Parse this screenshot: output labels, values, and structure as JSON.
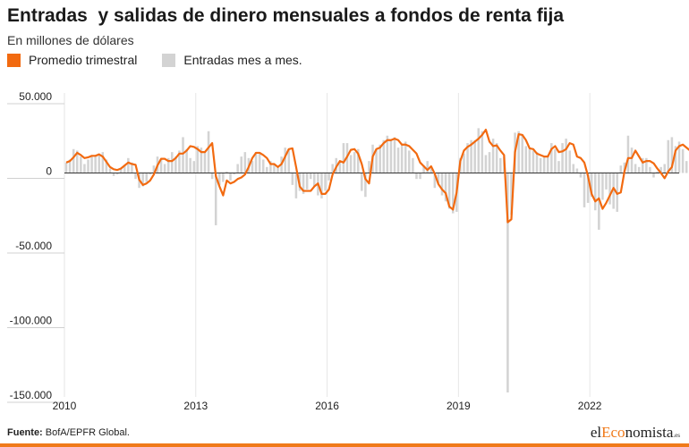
{
  "header": {
    "title": "Entradas  y salidas de dinero mensuales a fondos de renta fija",
    "subtitle": "En millones de dólares"
  },
  "legend": [
    {
      "label": "Promedio trimestral",
      "color": "#f26a10"
    },
    {
      "label": "Entradas mes a mes.",
      "color": "#d3d3d3"
    }
  ],
  "footer": {
    "source_label": "Fuente:",
    "source_text": " BofA/EPFR Global.",
    "brand_pre": "el",
    "brand_accent": "Eco",
    "brand_post": "nomista",
    "brand_suffix": ".es"
  },
  "colors": {
    "line": "#f26a10",
    "bars": "#d3d3d3",
    "brand_accent": "#f07a1a",
    "bottom_bar": "#f07a1a"
  },
  "chart_data": {
    "type": "bar+line",
    "x_start": "2010-01",
    "x_end": "2024-01",
    "frequency": "monthly",
    "ylim": [
      -150000,
      50000
    ],
    "yticks": [
      50000,
      0,
      -50000,
      -100000,
      -150000
    ],
    "ytick_labels": [
      "50.000",
      "0",
      "-50.000",
      "-100.000",
      "-150.000"
    ],
    "xtick_labels": [
      "2010",
      "2013",
      "2016",
      "2019",
      "2022"
    ],
    "grid": "vertical",
    "legend_position": "top-left",
    "series": [
      {
        "name": "Entradas mes a mes.",
        "type": "bar",
        "values": [
          7000,
          9000,
          16000,
          15000,
          11000,
          6000,
          9000,
          12000,
          12000,
          13000,
          14000,
          9000,
          3000,
          -2000,
          -1000,
          3000,
          5000,
          10000,
          7000,
          -4000,
          -10000,
          -9000,
          -6000,
          -1000,
          5000,
          11000,
          9000,
          6000,
          10000,
          14000,
          11000,
          15000,
          24000,
          16000,
          10000,
          8000,
          18000,
          17000,
          14000,
          28000,
          -4000,
          -35000,
          -8000,
          -6000,
          1000,
          -5000,
          -1000,
          6000,
          11000,
          14000,
          10000,
          8000,
          14000,
          13000,
          9000,
          4000,
          8000,
          6000,
          5000,
          11000,
          17000,
          16000,
          -8000,
          -17000,
          -12000,
          -14000,
          -11000,
          -4000,
          -9000,
          -15000,
          -17000,
          -12000,
          -5000,
          6000,
          10000,
          7000,
          20000,
          20000,
          12000,
          14000,
          16000,
          -12000,
          -16000,
          8000,
          19000,
          16000,
          19000,
          22000,
          25000,
          22000,
          24000,
          17000,
          19000,
          21000,
          15000,
          10000,
          -4000,
          -4000,
          5000,
          8000,
          3000,
          -10000,
          -7000,
          -15000,
          -19000,
          -24000,
          -27000,
          -26000,
          10000,
          13000,
          20000,
          22000,
          22000,
          30000,
          28000,
          12000,
          14000,
          23000,
          20000,
          10000,
          11000,
          -147000,
          -28000,
          27000,
          28000,
          26000,
          18000,
          16000,
          15000,
          14000,
          10000,
          11000,
          12000,
          20000,
          16000,
          8000,
          20000,
          23000,
          15000,
          6000,
          3000,
          -3000,
          -23000,
          -20000,
          -16000,
          -25000,
          -38000,
          -18000,
          -11000,
          -21000,
          -24000,
          -26000,
          5000,
          7000,
          25000,
          17000,
          6000,
          4000,
          10000,
          10000,
          4000,
          -3000,
          1000,
          4000,
          6000,
          22000,
          24000,
          18000,
          21000,
          16000,
          8000,
          10000,
          21000,
          24000
        ]
      },
      {
        "name": "Promedio trimestral",
        "type": "line",
        "values": [
          7000,
          8000,
          10500,
          13500,
          12000,
          10000,
          10500,
          11500,
          11500,
          12500,
          11000,
          7500,
          4000,
          2500,
          2000,
          3000,
          5000,
          7000,
          6000,
          5500,
          -4500,
          -8000,
          -7000,
          -5000,
          -1000,
          5000,
          9500,
          9500,
          8000,
          8000,
          10000,
          13000,
          13000,
          15000,
          18000,
          17500,
          16000,
          14000,
          14000,
          17000,
          20000,
          -2000,
          -9000,
          -15000,
          -5000,
          -7000,
          -6000,
          -4000,
          -3000,
          -1000,
          4000,
          10000,
          13500,
          13500,
          12000,
          10000,
          6000,
          6000,
          4000,
          6000,
          11000,
          16000,
          16500,
          4000,
          -9000,
          -12000,
          -12000,
          -12000,
          -9000,
          -7000,
          -14000,
          -14000,
          -11000,
          -1000,
          4000,
          8000,
          7000,
          11000,
          15500,
          16000,
          13000,
          6000,
          -4000,
          -7000,
          11000,
          16000,
          17000,
          20000,
          22000,
          22000,
          23000,
          22000,
          19000,
          19000,
          18000,
          15500,
          13000,
          7000,
          4500,
          2000,
          4500,
          -500,
          -7500,
          -11000,
          -13500,
          -22500,
          -24500,
          -13000,
          8000,
          15000,
          17500,
          19000,
          21000,
          23000,
          25500,
          29000,
          21000,
          18000,
          18500,
          15000,
          12000,
          -33000,
          -31000,
          14000,
          26000,
          25500,
          22000,
          16500,
          16000,
          13000,
          12000,
          11000,
          11000,
          16000,
          18000,
          14000,
          14500,
          16000,
          20000,
          19000,
          11000,
          10000,
          7000,
          -2000,
          -14000,
          -19000,
          -17000,
          -24000,
          -20000,
          -15000,
          -10000,
          -14000,
          -13000,
          1000,
          10000,
          10000,
          15000,
          11000,
          7000,
          8000,
          8000,
          6500,
          3000,
          0,
          -3500,
          1000,
          4000,
          15000,
          18000,
          19000,
          17000,
          15000,
          14000,
          15000,
          14000,
          19500
        ]
      }
    ]
  }
}
